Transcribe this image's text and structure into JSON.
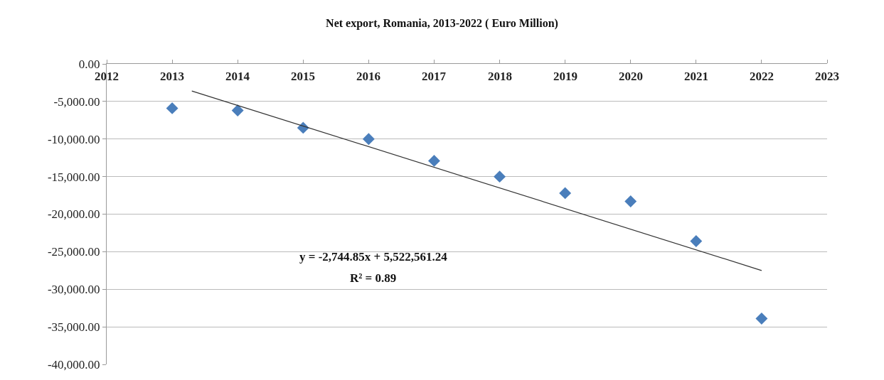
{
  "chart_data": {
    "type": "scatter",
    "title": "Net export, Romania, 2013-2022 ( Euro Million)",
    "x": [
      2013,
      2014,
      2015,
      2016,
      2017,
      2018,
      2019,
      2020,
      2021,
      2022
    ],
    "series": [
      {
        "type": "scatter",
        "color": "#4a7ebb",
        "marker": "diamond",
        "values": [
          -5900,
          -6200,
          -8500,
          -10000,
          -12900,
          -15000,
          -17200,
          -18300,
          -23600,
          -33900
        ]
      },
      {
        "type": "line",
        "color": "#333333",
        "marker": "none",
        "line_style": "solid",
        "x": [
          2013.3,
          2022
        ],
        "values": [
          -3600,
          -27500
        ]
      }
    ],
    "xlim": [
      2012,
      2023
    ],
    "xticks": [
      2012,
      2013,
      2014,
      2015,
      2016,
      2017,
      2018,
      2019,
      2020,
      2021,
      2022,
      2023
    ],
    "ylim": [
      -40000,
      0
    ],
    "yticks": [
      {
        "value": 0,
        "label": "0.00"
      },
      {
        "value": -5000,
        "label": "-5,000.00"
      },
      {
        "value": -10000,
        "label": "-10,000.00"
      },
      {
        "value": -15000,
        "label": "-15,000.00"
      },
      {
        "value": -20000,
        "label": "-20,000.00"
      },
      {
        "value": -25000,
        "label": "-25,000.00"
      },
      {
        "value": -30000,
        "label": "-30,000.00"
      },
      {
        "value": -35000,
        "label": "-35,000.00"
      },
      {
        "value": -40000,
        "label": "-40,000.00"
      }
    ],
    "grid": "y",
    "annotations": [
      "y = -2,744.85x + 5,522,561.24",
      "R² = 0.89"
    ]
  }
}
